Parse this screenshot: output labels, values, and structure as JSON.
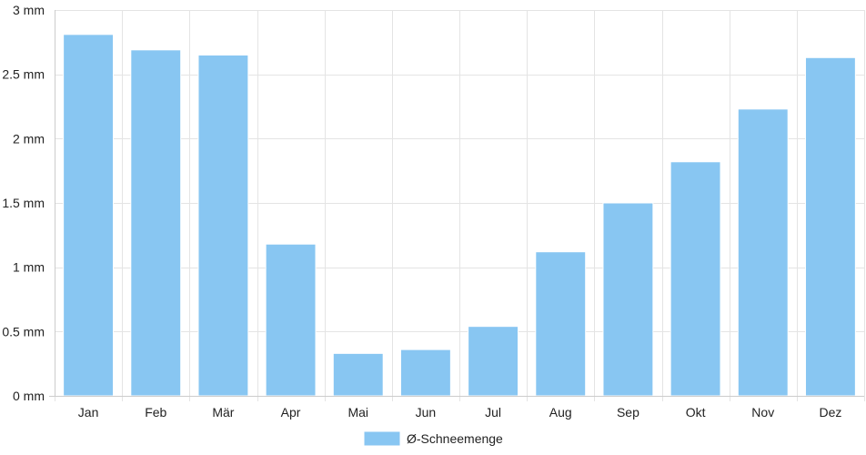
{
  "chart_data": {
    "type": "bar",
    "title": "",
    "xlabel": "",
    "ylabel": "",
    "categories": [
      "Jan",
      "Feb",
      "Mär",
      "Apr",
      "Mai",
      "Jun",
      "Jul",
      "Aug",
      "Sep",
      "Okt",
      "Nov",
      "Dez"
    ],
    "series": [
      {
        "name": "Ø-Schneemenge",
        "values": [
          2.81,
          2.69,
          2.65,
          1.18,
          0.33,
          0.36,
          0.54,
          1.12,
          1.5,
          1.82,
          2.23,
          2.63
        ]
      }
    ],
    "ylim": [
      0,
      3
    ],
    "yticks": [
      {
        "value": 0,
        "label": "0 mm"
      },
      {
        "value": 0.5,
        "label": "0.5 mm"
      },
      {
        "value": 1,
        "label": "1 mm"
      },
      {
        "value": 1.5,
        "label": "1.5 mm"
      },
      {
        "value": 2,
        "label": "2 mm"
      },
      {
        "value": 2.5,
        "label": "2.5 mm"
      },
      {
        "value": 3,
        "label": "3 mm"
      }
    ],
    "grid": true,
    "legend_position": "bottom",
    "colors": {
      "bar": "#88c6f2",
      "bar_edge": "#ffffff",
      "grid": "#e4e4e4",
      "axis": "#cccccc",
      "text": "#222222"
    }
  }
}
